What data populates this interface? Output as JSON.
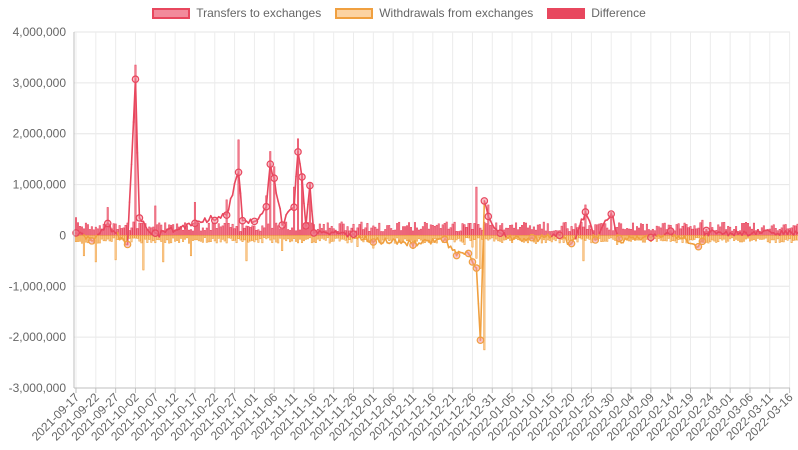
{
  "chart_data": {
    "type": "bar",
    "title": "",
    "xlabel": "",
    "ylabel": "",
    "ylim": [
      -3000000,
      4000000
    ],
    "y_ticks": [
      "4,000,000",
      "3,000,000",
      "2,000,000",
      "1,000,000",
      "0",
      "-1,000,000",
      "-2,000,000",
      "-3,000,000"
    ],
    "y_tick_values": [
      4000000,
      3000000,
      2000000,
      1000000,
      0,
      -1000000,
      -2000000,
      -3000000
    ],
    "x_labels": [
      "2021-09-17",
      "2021-09-22",
      "2021-09-27",
      "2021-10-02",
      "2021-10-07",
      "2021-10-12",
      "2021-10-17",
      "2021-10-22",
      "2021-10-27",
      "2021-11-01",
      "2021-11-06",
      "2021-11-11",
      "2021-11-16",
      "2021-11-21",
      "2021-11-26",
      "2021-12-01",
      "2021-12-06",
      "2021-12-11",
      "2021-12-16",
      "2021-12-21",
      "2021-12-26",
      "2021-12-31",
      "2022-01-05",
      "2022-01-10",
      "2022-01-15",
      "2022-01-20",
      "2022-01-25",
      "2022-01-30",
      "2022-02-04",
      "2022-02-09",
      "2022-02-14",
      "2022-02-19",
      "2022-02-24",
      "2022-03-01",
      "2022-03-06",
      "2022-03-11",
      "2022-03-16"
    ],
    "points_per_day": 2,
    "grid": true,
    "legend_position": "top",
    "series": [
      {
        "name": "Transfers to exchanges",
        "kind": "bar",
        "color": "#e8475e",
        "fill": "#f28a9b",
        "key_values": [
          [
            0,
            350000
          ],
          [
            16,
            550000
          ],
          [
            30,
            3350000
          ],
          [
            40,
            580000
          ],
          [
            60,
            650000
          ],
          [
            76,
            700000
          ],
          [
            82,
            1880000
          ],
          [
            96,
            780000
          ],
          [
            98,
            1650000
          ],
          [
            100,
            1350000
          ],
          [
            110,
            950000
          ],
          [
            112,
            1900000
          ],
          [
            114,
            1200000
          ],
          [
            118,
            1020000
          ],
          [
            202,
            950000
          ],
          [
            208,
            600000
          ],
          [
            257,
            600000
          ],
          [
            270,
            450000
          ],
          [
            316,
            300000
          ]
        ]
      },
      {
        "name": "Withdrawals from exchanges",
        "kind": "bar",
        "color": "#f0a040",
        "fill": "#fcd3a2",
        "key_values": [
          [
            4,
            -400000
          ],
          [
            10,
            -520000
          ],
          [
            20,
            -480000
          ],
          [
            34,
            -680000
          ],
          [
            44,
            -520000
          ],
          [
            58,
            -400000
          ],
          [
            86,
            -500000
          ],
          [
            104,
            -300000
          ],
          [
            142,
            -220000
          ],
          [
            150,
            -250000
          ],
          [
            170,
            -260000
          ],
          [
            196,
            -180000
          ],
          [
            200,
            -230000
          ],
          [
            202,
            -450000
          ],
          [
            204,
            -650000
          ],
          [
            206,
            -2250000
          ],
          [
            232,
            -160000
          ],
          [
            256,
            -500000
          ],
          [
            273,
            -180000
          ],
          [
            300,
            -120000
          ]
        ]
      },
      {
        "name": "Difference",
        "kind": "line",
        "color": "#e8475e",
        "key_values": [
          [
            0,
            100000
          ],
          [
            8,
            -120000
          ],
          [
            16,
            200000
          ],
          [
            26,
            -200000
          ],
          [
            30,
            3050000
          ],
          [
            32,
            300000
          ],
          [
            40,
            0
          ],
          [
            60,
            250000
          ],
          [
            70,
            350000
          ],
          [
            76,
            400000
          ],
          [
            82,
            1300000
          ],
          [
            84,
            250000
          ],
          [
            90,
            300000
          ],
          [
            96,
            550000
          ],
          [
            98,
            1400000
          ],
          [
            100,
            1100000
          ],
          [
            104,
            250000
          ],
          [
            110,
            600000
          ],
          [
            112,
            1620000
          ],
          [
            114,
            1100000
          ],
          [
            116,
            150000
          ],
          [
            118,
            1000000
          ],
          [
            120,
            50000
          ],
          [
            140,
            0
          ],
          [
            150,
            -100000
          ],
          [
            170,
            -150000
          ],
          [
            186,
            -100000
          ],
          [
            192,
            -350000
          ],
          [
            198,
            -320000
          ],
          [
            200,
            -500000
          ],
          [
            202,
            -650000
          ],
          [
            204,
            -2050000
          ],
          [
            206,
            700000
          ],
          [
            208,
            350000
          ],
          [
            214,
            0
          ],
          [
            230,
            -100000
          ],
          [
            244,
            50000
          ],
          [
            250,
            -200000
          ],
          [
            257,
            450000
          ],
          [
            262,
            -100000
          ],
          [
            270,
            450000
          ],
          [
            274,
            -100000
          ],
          [
            290,
            0
          ],
          [
            300,
            50000
          ],
          [
            314,
            -200000
          ],
          [
            316,
            -150000
          ],
          [
            318,
            50000
          ]
        ]
      }
    ]
  }
}
